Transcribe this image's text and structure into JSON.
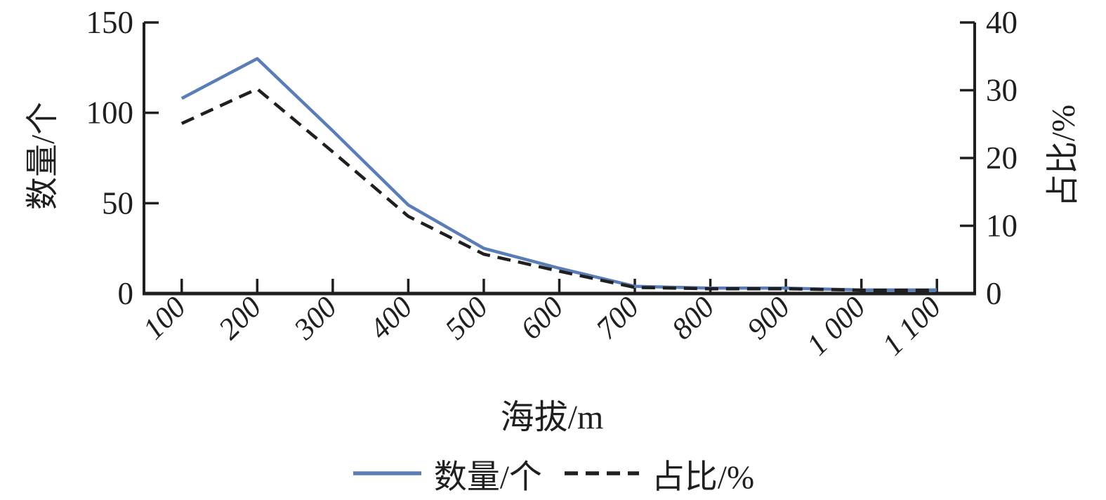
{
  "chart_data": {
    "type": "line",
    "categories": [
      "100",
      "200",
      "300",
      "400",
      "500",
      "600",
      "700",
      "800",
      "900",
      "1 000",
      "1 100"
    ],
    "series": [
      {
        "name": "数量/个",
        "axis": "left",
        "style": "solid",
        "color": "#5b7db6",
        "values": [
          108,
          130,
          90,
          49,
          25,
          14,
          4,
          3,
          3,
          2,
          2
        ]
      },
      {
        "name": "占比/%",
        "axis": "right",
        "style": "dashed",
        "color": "#1f1f1f",
        "values": [
          25.1,
          30.2,
          20.9,
          11.4,
          5.8,
          3.3,
          0.9,
          0.7,
          0.7,
          0.5,
          0.5
        ]
      }
    ],
    "xlabel": "海拔/m",
    "ylabel_left": "数量/个",
    "ylabel_right": "占比/%",
    "y_left_axis": {
      "min": 0,
      "max": 150,
      "ticks": [
        150,
        100,
        50,
        0
      ]
    },
    "y_right_axis": {
      "min": 0,
      "max": 40,
      "ticks": [
        40,
        30,
        20,
        10,
        0
      ]
    },
    "grid": false,
    "legend_position": "bottom"
  },
  "legend": {
    "items": [
      {
        "label": "数量/个",
        "swatch": "solid-blue-line"
      },
      {
        "label": "占比/%",
        "swatch": "dashed-black-line"
      }
    ]
  },
  "colors": {
    "line_primary": "#5b7db6",
    "line_secondary": "#1f1f1f",
    "axis": "#1f1f1f",
    "background": "#ffffff"
  }
}
